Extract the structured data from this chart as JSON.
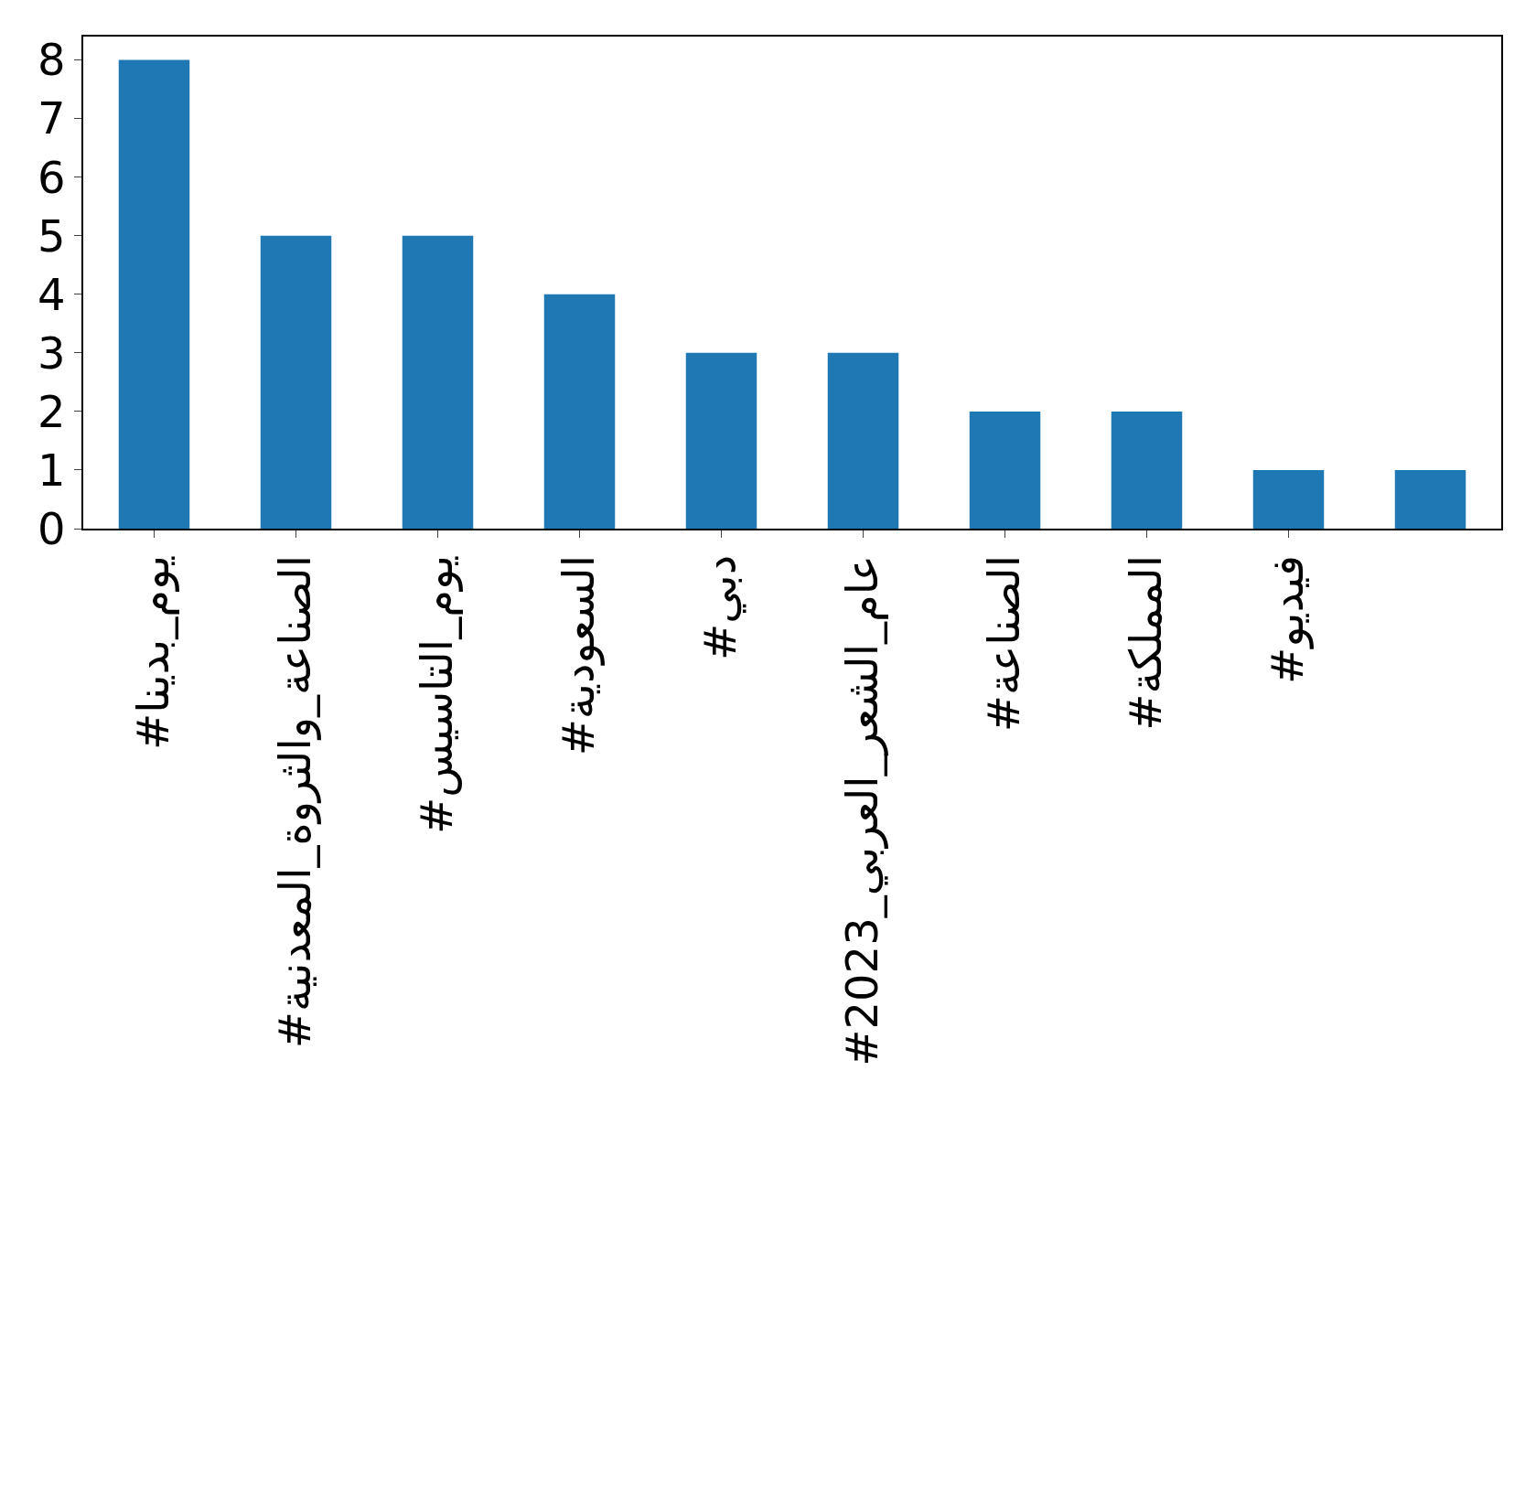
{
  "chart_data": {
    "type": "bar",
    "categories": [
      "#يوم_بدينا",
      "#الصناعة_والثروة_المعدنية",
      "#يوم_التاسيس",
      "#السعودية",
      "#دبي",
      "#عام_الشعر_العربي_2023",
      "#الصناعة",
      "#المملكة",
      "#فيديو",
      null
    ],
    "values": [
      8,
      5,
      5,
      4,
      3,
      3,
      2,
      2,
      1,
      1
    ],
    "color": "#1f77b4",
    "ylim": [
      0,
      8.4
    ],
    "yticks": [
      0,
      1,
      2,
      3,
      4,
      5,
      6,
      7,
      8
    ],
    "grid": false
  }
}
